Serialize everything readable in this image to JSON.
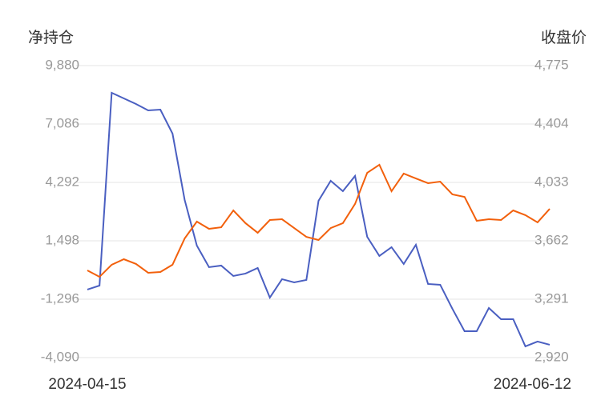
{
  "chart_data": {
    "type": "line",
    "y_label": "净持仓",
    "y2_label": "收盘价",
    "categories": [
      "2024-04-15",
      null,
      null,
      null,
      null,
      null,
      null,
      null,
      null,
      null,
      null,
      null,
      null,
      null,
      null,
      null,
      null,
      null,
      null,
      null,
      null,
      null,
      null,
      null,
      null,
      null,
      null,
      null,
      null,
      null,
      null,
      null,
      null,
      null,
      null,
      null,
      null,
      null,
      "2024-06-12"
    ],
    "series": [
      {
        "color": "#4a5fc1",
        "values": [
          -836,
          -644,
          8579,
          8311,
          8043,
          7737,
          7775,
          6627,
          3451,
          1269,
          236,
          313,
          -185,
          -70,
          198,
          -1218,
          -338,
          -491,
          -376,
          3412,
          4369,
          3872,
          4599,
          1690,
          772,
          1193,
          389,
          1307,
          -568,
          -606,
          -1754,
          -2826,
          -2826,
          -1716,
          -2252,
          -2252,
          -3553,
          -3323,
          -3476
        ]
      },
      {
        "color": "#f2600c",
        "axis": "y2",
        "values": [
          3474,
          3433,
          3510,
          3545,
          3515,
          3459,
          3464,
          3510,
          3677,
          3784,
          3738,
          3748,
          3855,
          3774,
          3713,
          3794,
          3799,
          3743,
          3687,
          3667,
          3743,
          3774,
          3896,
          4094,
          4145,
          3977,
          4089,
          4058,
          4028,
          4038,
          3957,
          3941,
          3789,
          3799,
          3794,
          3855,
          3825,
          3779,
          3865
        ]
      }
    ],
    "ylim": [
      -4090,
      9880
    ],
    "yticks": [
      {
        "value": -4090,
        "label": "-4,090"
      },
      {
        "value": -1296,
        "label": "-1,296"
      },
      {
        "value": 1498,
        "label": "1,498"
      },
      {
        "value": 4292,
        "label": "4,292"
      },
      {
        "value": 7086,
        "label": "7,086"
      },
      {
        "value": 9880,
        "label": "9,880"
      }
    ],
    "y2lim": [
      2920,
      4775
    ],
    "y2ticks": [
      {
        "value": 2920,
        "label": "2,920"
      },
      {
        "value": 3291,
        "label": "3,291"
      },
      {
        "value": 3662,
        "label": "3,662"
      },
      {
        "value": 4033,
        "label": "4,033"
      },
      {
        "value": 4404,
        "label": "4,404"
      },
      {
        "value": 4775,
        "label": "4,775"
      }
    ],
    "grid": true
  }
}
